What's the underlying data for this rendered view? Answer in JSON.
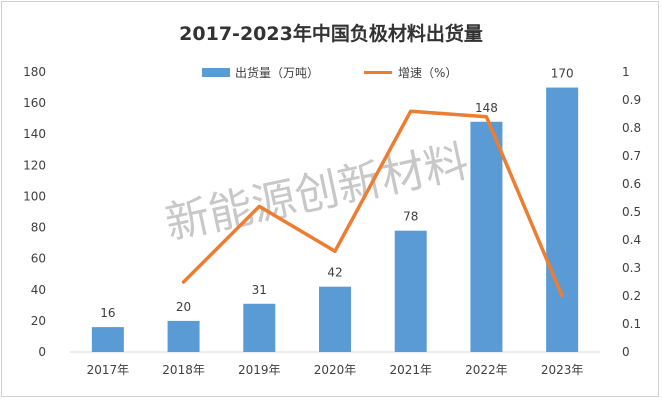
{
  "chart_data": {
    "type": "bar+line",
    "title": "2017-2023年中国负极材料出货量",
    "categories": [
      "2017年",
      "2018年",
      "2019年",
      "2020年",
      "2021年",
      "2022年",
      "2023年"
    ],
    "series": [
      {
        "name": "出货量（万吨）",
        "type": "bar",
        "axis": "left",
        "color": "#5b9bd5",
        "values": [
          16,
          20,
          31,
          42,
          78,
          148,
          170
        ],
        "data_labels": [
          "16",
          "20",
          "31",
          "42",
          "78",
          "148",
          "170"
        ]
      },
      {
        "name": "增速（%）",
        "type": "line",
        "axis": "right",
        "color": "#ed7d31",
        "values": [
          null,
          0.25,
          0.52,
          0.36,
          0.86,
          0.84,
          0.2
        ]
      }
    ],
    "y_left": {
      "min": 0,
      "max": 180,
      "ticks": [
        "0",
        "20",
        "40",
        "60",
        "80",
        "100",
        "120",
        "140",
        "160",
        "180"
      ]
    },
    "y_right": {
      "min": 0,
      "max": 1,
      "ticks": [
        "0",
        "0.1",
        "0.2",
        "0.3",
        "0.4",
        "0.5",
        "0.6",
        "0.7",
        "0.8",
        "0.9",
        "1"
      ]
    },
    "grid": false,
    "legend_position": "top-center",
    "watermark": "新能源创新材料"
  }
}
